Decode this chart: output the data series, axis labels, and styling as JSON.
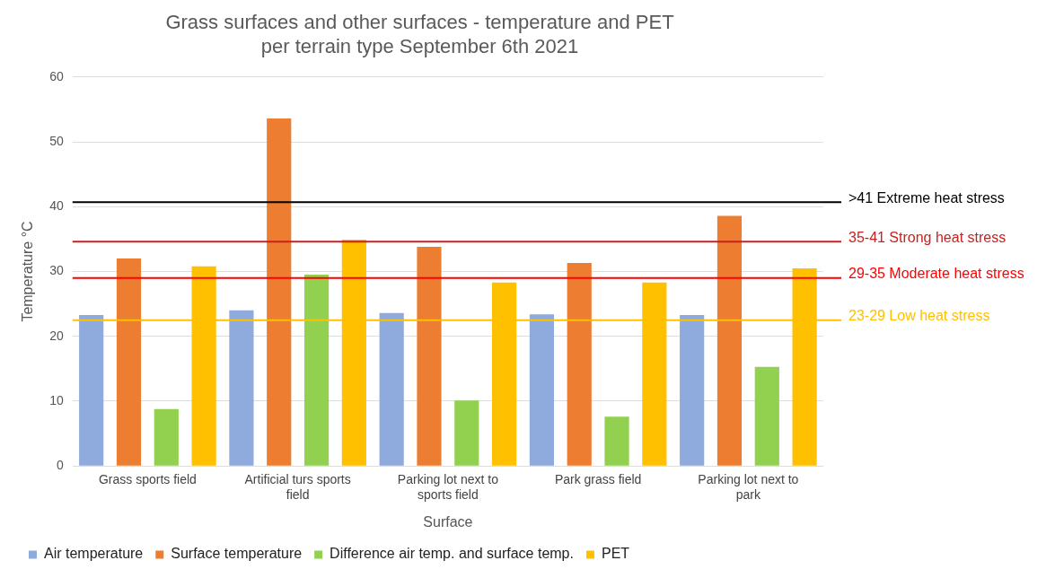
{
  "chart_data": {
    "type": "bar",
    "title": "Grass surfaces and other surfaces - temperature and PET per terrain type September 6th 2021",
    "xlabel": "Surface",
    "ylabel": "Temperature °C",
    "categories": [
      "Grass sports field",
      "Artificial turs sports field",
      "Parking lot next to sports field",
      "Park grass field",
      "Parking lot next to park"
    ],
    "series": [
      {
        "name": "Air temperature",
        "color": "#8faadc",
        "values": [
          23.3,
          24,
          23.6,
          23.4,
          23.3
        ]
      },
      {
        "name": "Surface temperature",
        "color": "#ed7d31",
        "values": [
          32,
          53.6,
          33.8,
          31.3,
          38.6
        ]
      },
      {
        "name": "Difference air temp. and surface temp.",
        "color": "#92d050",
        "values": [
          8.8,
          29.5,
          10.1,
          7.6,
          15.3
        ]
      },
      {
        "name": "PET",
        "color": "#ffc000",
        "values": [
          30.8,
          34.9,
          28.3,
          28.3,
          30.5
        ]
      }
    ],
    "ylim": [
      0,
      60
    ],
    "yticks": [
      0,
      10,
      20,
      30,
      40,
      50,
      60
    ],
    "grid": "y",
    "legend": "bottom",
    "ref_lines": [
      {
        "axis": "y",
        "value": 40.7,
        "label": ">41 Extreme heat stress",
        "color": "#000000"
      },
      {
        "axis": "y",
        "value": 34.6,
        "label": "35-41 Strong heat stress",
        "color": "#c9211e"
      },
      {
        "axis": "y",
        "value": 29,
        "label": "29-35 Moderate heat stress",
        "color": "#ff0000"
      },
      {
        "axis": "y",
        "value": 22.5,
        "label": "23-29 Low heat stress",
        "color": "#ffc000"
      }
    ]
  }
}
